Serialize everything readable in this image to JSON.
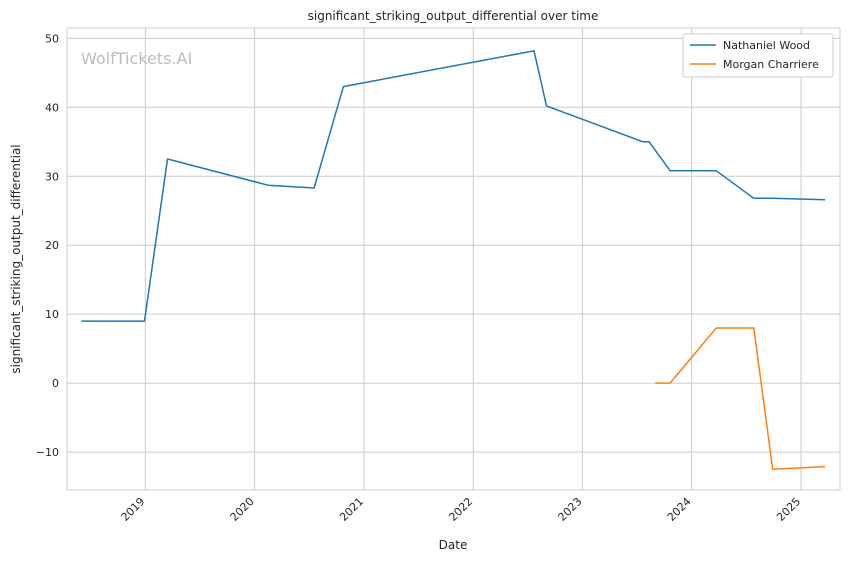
{
  "chart_data": {
    "type": "line",
    "title": "significant_striking_output_differential over time",
    "xlabel": "Date",
    "ylabel": "significant_striking_output_differential",
    "watermark": "WolfTickets.AI",
    "x_ticks": [
      "2019",
      "2020",
      "2021",
      "2022",
      "2023",
      "2024",
      "2025"
    ],
    "y_ticks": [
      "−10",
      "0",
      "10",
      "20",
      "30",
      "40",
      "50"
    ],
    "xlim": [
      "2018-04-14",
      "2025-05-11"
    ],
    "ylim": [
      -15.5,
      51.5
    ],
    "grid": true,
    "legend_position": "top-right",
    "series": [
      {
        "name": "Nathaniel Wood",
        "color": "#1f77b4",
        "points": [
          [
            "2018-06-01",
            9.0
          ],
          [
            "2018-12-29",
            9.0
          ],
          [
            "2019-03-16",
            32.5
          ],
          [
            "2020-02-15",
            28.7
          ],
          [
            "2020-07-18",
            28.3
          ],
          [
            "2020-10-24",
            43.0
          ],
          [
            "2022-07-23",
            48.2
          ],
          [
            "2022-09-03",
            40.2
          ],
          [
            "2023-07-22",
            35.0
          ],
          [
            "2023-08-12",
            35.0
          ],
          [
            "2023-10-21",
            30.8
          ],
          [
            "2024-03-23",
            30.8
          ],
          [
            "2024-07-27",
            26.8
          ],
          [
            "2024-09-28",
            26.8
          ],
          [
            "2025-03-22",
            26.6
          ]
        ]
      },
      {
        "name": "Morgan Charriere",
        "color": "#ff7f0e",
        "points": [
          [
            "2023-09-02",
            0.0
          ],
          [
            "2023-10-21",
            0.0
          ],
          [
            "2024-03-23",
            8.0
          ],
          [
            "2024-07-27",
            8.0
          ],
          [
            "2024-09-28",
            -12.5
          ],
          [
            "2025-03-22",
            -12.1
          ]
        ]
      }
    ]
  }
}
